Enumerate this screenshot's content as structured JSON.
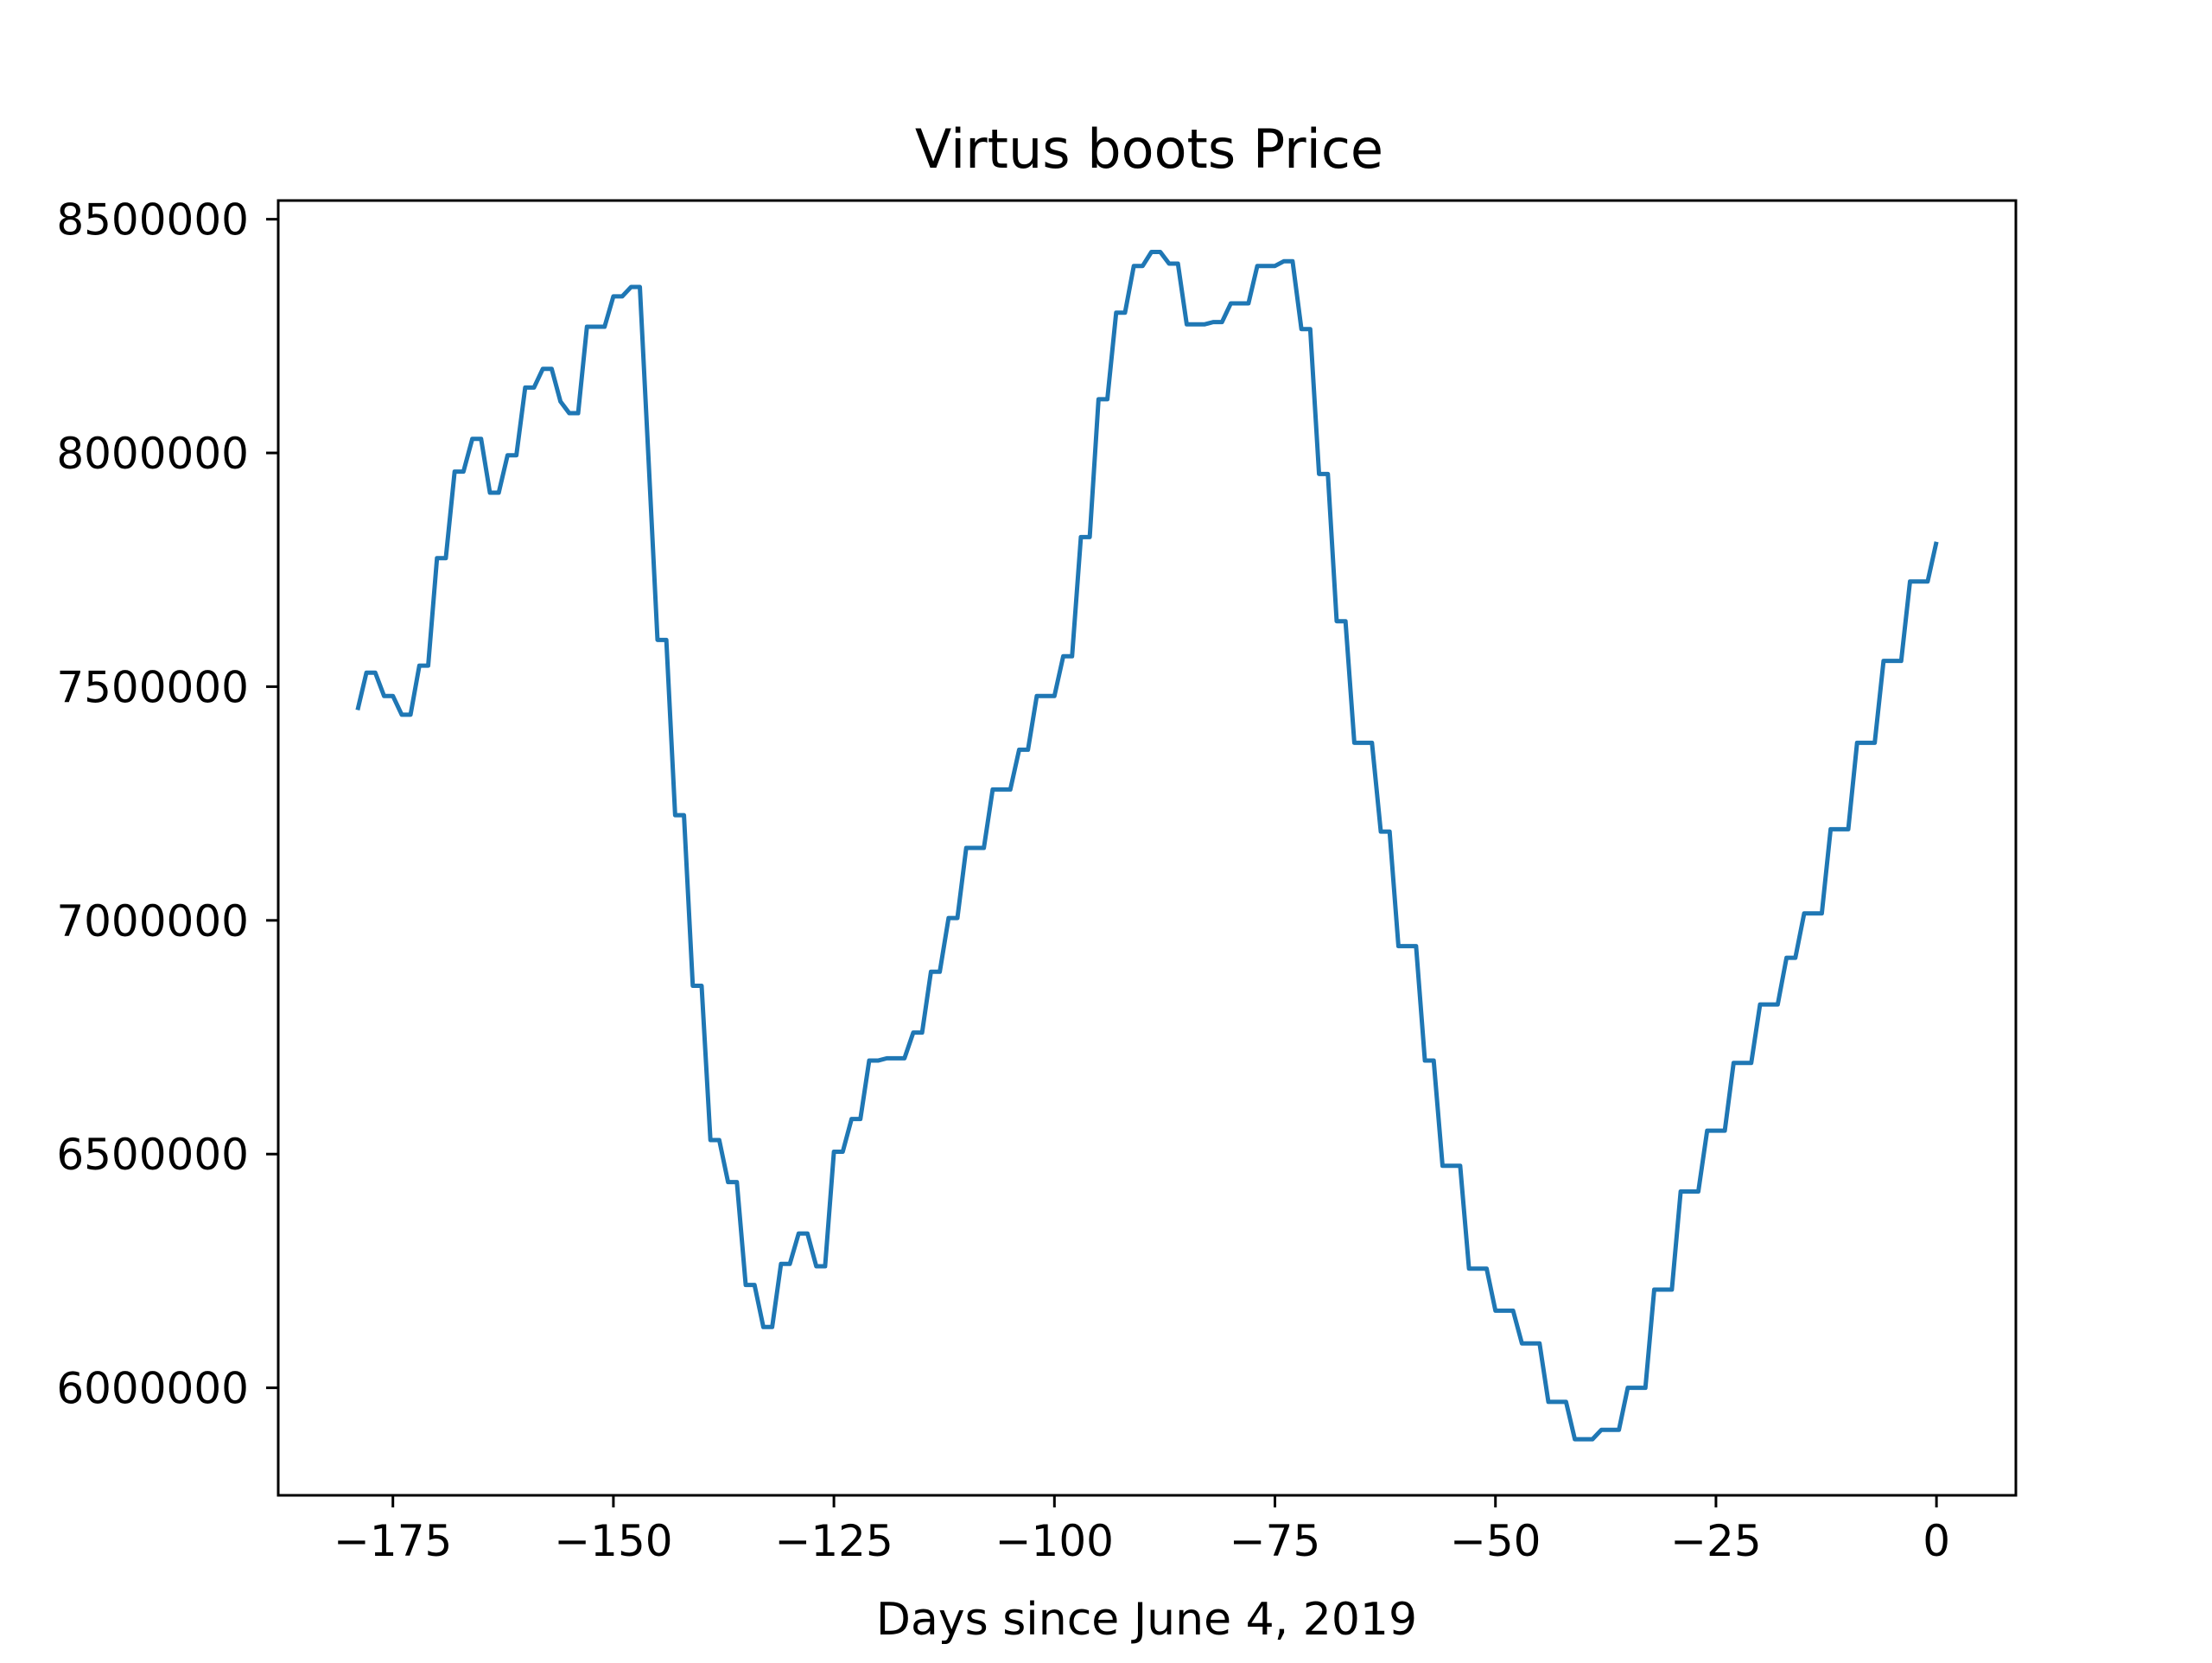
{
  "chart_data": {
    "type": "line",
    "title": "Virtus boots Price",
    "xlabel": "Days since June 4, 2019",
    "ylabel": "",
    "xlim": [
      -188,
      9
    ],
    "ylim": [
      5770000,
      8540000
    ],
    "xticks": [
      -175,
      -150,
      -125,
      -100,
      -75,
      -50,
      -25,
      0
    ],
    "xtick_labels": [
      "−175",
      "−150",
      "−125",
      "−100",
      "−75",
      "−50",
      "−25",
      "0"
    ],
    "yticks": [
      6000000,
      6500000,
      7000000,
      7500000,
      8000000,
      8500000
    ],
    "ytick_labels": [
      "6000000",
      "6500000",
      "7000000",
      "7500000",
      "8000000",
      "8500000"
    ],
    "grid": false,
    "line_color": "#1f77b4",
    "series": [
      {
        "x": [
          -179,
          -178,
          -177,
          -176,
          -175,
          -174,
          -173,
          -172,
          -171,
          -170,
          -169,
          -168,
          -167,
          -166,
          -165,
          -164,
          -163,
          -162,
          -161,
          -160,
          -159,
          -158,
          -157,
          -156,
          -155,
          -154,
          -153,
          -152,
          -151,
          -150,
          -149,
          -148,
          -147,
          -146,
          -145,
          -144,
          -143,
          -142,
          -141,
          -140,
          -139,
          -138,
          -137,
          -136,
          -135,
          -134,
          -133,
          -132,
          -131,
          -130,
          -129,
          -128,
          -127,
          -126,
          -125,
          -124,
          -123,
          -122,
          -121,
          -120,
          -119,
          -118,
          -117,
          -116,
          -115,
          -114,
          -113,
          -112,
          -111,
          -110,
          -109,
          -108,
          -107,
          -106,
          -105,
          -104,
          -103,
          -102,
          -101,
          -100,
          -99,
          -98,
          -97,
          -96,
          -95,
          -94,
          -93,
          -92,
          -91,
          -90,
          -89,
          -88,
          -87,
          -86,
          -85,
          -84,
          -83,
          -82,
          -81,
          -80,
          -79,
          -78,
          -77,
          -76,
          -75,
          -74,
          -73,
          -72,
          -71,
          -70,
          -69,
          -68,
          -67,
          -66,
          -65,
          -64,
          -63,
          -62,
          -61,
          -60,
          -59,
          -58,
          -57,
          -56,
          -55,
          -54,
          -53,
          -52,
          -51,
          -50,
          -49,
          -48,
          -47,
          -46,
          -45,
          -44,
          -43,
          -42,
          -41,
          -40,
          -39,
          -38,
          -37,
          -36,
          -35,
          -34,
          -33,
          -32,
          -31,
          -30,
          -29,
          -28,
          -27,
          -26,
          -25,
          -24,
          -23,
          -22,
          -21,
          -20,
          -19,
          -18,
          -17,
          -16,
          -15,
          -14,
          -13,
          -12,
          -11,
          -10,
          -9,
          -8,
          -7,
          -6,
          -5,
          -4,
          -3,
          -2,
          -1,
          0
        ],
        "y": [
          7450000,
          7530000,
          7530000,
          7480000,
          7480000,
          7440000,
          7440000,
          7545000,
          7545000,
          7775000,
          7775000,
          7960000,
          7960000,
          8030000,
          8030000,
          7915000,
          7915000,
          7995000,
          7995000,
          8140000,
          8140000,
          8180000,
          8180000,
          8110000,
          8085000,
          8085000,
          8270000,
          8270000,
          8270000,
          8335000,
          8335000,
          8355000,
          8355000,
          7980000,
          7600000,
          7600000,
          7225000,
          7225000,
          6860000,
          6860000,
          6530000,
          6530000,
          6440000,
          6440000,
          6220000,
          6220000,
          6130000,
          6130000,
          6265000,
          6265000,
          6330000,
          6330000,
          6260000,
          6260000,
          6505000,
          6505000,
          6575000,
          6575000,
          6700000,
          6700000,
          6705000,
          6705000,
          6705000,
          6760000,
          6760000,
          6890000,
          6890000,
          7005000,
          7005000,
          7155000,
          7155000,
          7155000,
          7280000,
          7280000,
          7280000,
          7365000,
          7365000,
          7480000,
          7480000,
          7480000,
          7565000,
          7565000,
          7820000,
          7820000,
          8115000,
          8115000,
          8300000,
          8300000,
          8400000,
          8400000,
          8430000,
          8430000,
          8405000,
          8405000,
          8275000,
          8275000,
          8275000,
          8280000,
          8280000,
          8320000,
          8320000,
          8320000,
          8400000,
          8400000,
          8400000,
          8410000,
          8410000,
          8265000,
          8265000,
          7955000,
          7955000,
          7640000,
          7640000,
          7380000,
          7380000,
          7380000,
          7190000,
          7190000,
          6945000,
          6945000,
          6945000,
          6700000,
          6700000,
          6475000,
          6475000,
          6475000,
          6255000,
          6255000,
          6255000,
          6165000,
          6165000,
          6165000,
          6095000,
          6095000,
          6095000,
          5970000,
          5970000,
          5970000,
          5890000,
          5890000,
          5890000,
          5910000,
          5910000,
          5910000,
          6000000,
          6000000,
          6000000,
          6210000,
          6210000,
          6210000,
          6420000,
          6420000,
          6420000,
          6550000,
          6550000,
          6550000,
          6695000,
          6695000,
          6695000,
          6820000,
          6820000,
          6820000,
          6920000,
          6920000,
          7015000,
          7015000,
          7015000,
          7195000,
          7195000,
          7195000,
          7380000,
          7380000,
          7380000,
          7555000,
          7555000,
          7555000,
          7725000,
          7725000,
          7725000,
          7810000
        ]
      }
    ]
  }
}
